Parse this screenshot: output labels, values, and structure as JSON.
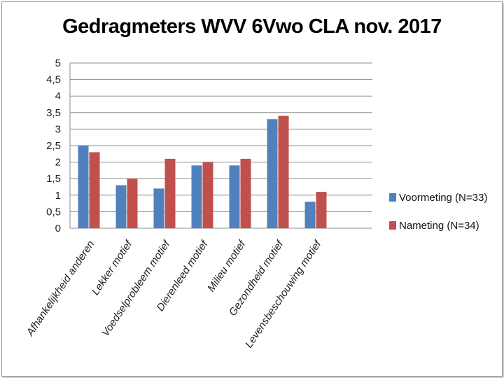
{
  "chart_data": {
    "type": "bar",
    "title": "Gedragmeters WVV 6Vwo CLA nov. 2017",
    "categories": [
      "Afhankelijkheid anderen",
      "Lekker motief",
      "Voedselprobleem motief",
      "Dierenleed motief",
      "Milieu motief",
      "Gezondheid motief",
      "Levensbeschouwing motief"
    ],
    "series": [
      {
        "name": "Voormeting (N=33)",
        "color": "#4F81BD",
        "values": [
          2.5,
          1.3,
          1.2,
          1.9,
          1.9,
          3.3,
          0.8
        ]
      },
      {
        "name": "Nameting (N=34)",
        "color": "#C0504D",
        "values": [
          2.3,
          1.5,
          2.1,
          2.0,
          2.1,
          3.4,
          1.1
        ]
      }
    ],
    "yticks": [
      "0",
      "0,5",
      "1",
      "1,5",
      "2",
      "2,5",
      "3",
      "3,5",
      "4",
      "4,5",
      "5"
    ],
    "ylim": [
      0,
      5
    ],
    "grid": true,
    "legend_position": "right"
  }
}
